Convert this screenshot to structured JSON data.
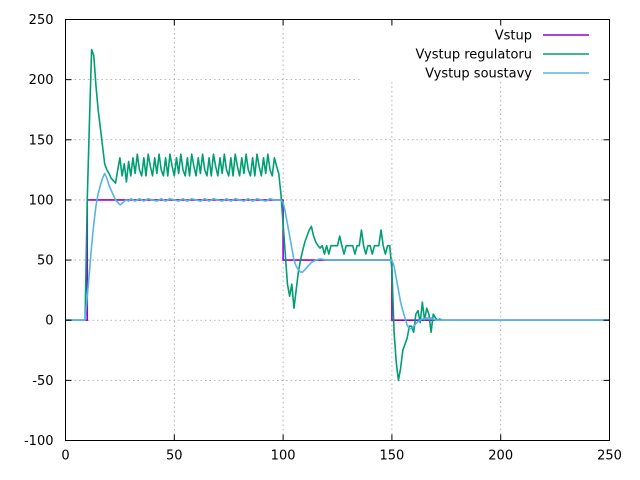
{
  "chart_data": {
    "type": "line",
    "title": "",
    "xlabel": "",
    "ylabel": "",
    "xlim": [
      0,
      250
    ],
    "ylim": [
      -100,
      250
    ],
    "x_ticks": [
      0,
      50,
      100,
      150,
      200,
      250
    ],
    "y_ticks": [
      -100,
      -50,
      0,
      50,
      100,
      150,
      200,
      250
    ],
    "grid": true,
    "legend_position": "top-right",
    "series": [
      {
        "name": "Vstup",
        "color": "#9400d3",
        "points": [
          [
            0,
            0
          ],
          [
            10,
            0
          ],
          [
            10,
            100
          ],
          [
            100,
            100
          ],
          [
            100,
            50
          ],
          [
            150,
            50
          ],
          [
            150,
            0
          ],
          [
            250,
            0
          ]
        ]
      },
      {
        "name": "Vystup regulatoru",
        "color": "#009e73",
        "points": [
          [
            0,
            0
          ],
          [
            9,
            0
          ],
          [
            10,
            100
          ],
          [
            11,
            165
          ],
          [
            12,
            225
          ],
          [
            13,
            220
          ],
          [
            14,
            195
          ],
          [
            15,
            175
          ],
          [
            16,
            160
          ],
          [
            17,
            145
          ],
          [
            18,
            130
          ],
          [
            19,
            125
          ],
          [
            20,
            122
          ],
          [
            21,
            118
          ],
          [
            22,
            116
          ],
          [
            23,
            114
          ],
          [
            24,
            125
          ],
          [
            25,
            135
          ],
          [
            26,
            120
          ],
          [
            27,
            130
          ],
          [
            28,
            115
          ],
          [
            29,
            132
          ],
          [
            30,
            120
          ],
          [
            31,
            135
          ],
          [
            32,
            122
          ],
          [
            33,
            138
          ],
          [
            34,
            125
          ],
          [
            35,
            120
          ],
          [
            36,
            135
          ],
          [
            37,
            120
          ],
          [
            38,
            138
          ],
          [
            39,
            128
          ],
          [
            40,
            120
          ],
          [
            41,
            135
          ],
          [
            42,
            122
          ],
          [
            43,
            138
          ],
          [
            44,
            125
          ],
          [
            45,
            120
          ],
          [
            46,
            135
          ],
          [
            47,
            120
          ],
          [
            48,
            138
          ],
          [
            49,
            128
          ],
          [
            50,
            120
          ],
          [
            51,
            135
          ],
          [
            52,
            122
          ],
          [
            53,
            138
          ],
          [
            54,
            125
          ],
          [
            55,
            120
          ],
          [
            56,
            135
          ],
          [
            57,
            120
          ],
          [
            58,
            138
          ],
          [
            59,
            128
          ],
          [
            60,
            120
          ],
          [
            61,
            135
          ],
          [
            62,
            122
          ],
          [
            63,
            138
          ],
          [
            64,
            125
          ],
          [
            65,
            120
          ],
          [
            66,
            135
          ],
          [
            67,
            120
          ],
          [
            68,
            138
          ],
          [
            69,
            128
          ],
          [
            70,
            120
          ],
          [
            71,
            135
          ],
          [
            72,
            122
          ],
          [
            73,
            138
          ],
          [
            74,
            125
          ],
          [
            75,
            120
          ],
          [
            76,
            135
          ],
          [
            77,
            120
          ],
          [
            78,
            138
          ],
          [
            79,
            128
          ],
          [
            80,
            120
          ],
          [
            81,
            135
          ],
          [
            82,
            122
          ],
          [
            83,
            138
          ],
          [
            84,
            125
          ],
          [
            85,
            120
          ],
          [
            86,
            135
          ],
          [
            87,
            120
          ],
          [
            88,
            138
          ],
          [
            89,
            128
          ],
          [
            90,
            120
          ],
          [
            91,
            135
          ],
          [
            92,
            122
          ],
          [
            93,
            138
          ],
          [
            94,
            125
          ],
          [
            95,
            120
          ],
          [
            96,
            135
          ],
          [
            97,
            128
          ],
          [
            98,
            122
          ],
          [
            99,
            105
          ],
          [
            100,
            80
          ],
          [
            101,
            55
          ],
          [
            102,
            30
          ],
          [
            103,
            20
          ],
          [
            104,
            30
          ],
          [
            105,
            10
          ],
          [
            106,
            25
          ],
          [
            107,
            40
          ],
          [
            108,
            50
          ],
          [
            109,
            58
          ],
          [
            110,
            65
          ],
          [
            111,
            70
          ],
          [
            112,
            75
          ],
          [
            113,
            78
          ],
          [
            114,
            70
          ],
          [
            115,
            65
          ],
          [
            116,
            62
          ],
          [
            117,
            60
          ],
          [
            118,
            62
          ],
          [
            119,
            55
          ],
          [
            120,
            62
          ],
          [
            121,
            55
          ],
          [
            122,
            62
          ],
          [
            123,
            62
          ],
          [
            124,
            62
          ],
          [
            125,
            62
          ],
          [
            126,
            70
          ],
          [
            127,
            62
          ],
          [
            128,
            55
          ],
          [
            129,
            62
          ],
          [
            130,
            62
          ],
          [
            131,
            62
          ],
          [
            132,
            62
          ],
          [
            133,
            55
          ],
          [
            134,
            62
          ],
          [
            135,
            62
          ],
          [
            136,
            75
          ],
          [
            137,
            62
          ],
          [
            138,
            55
          ],
          [
            139,
            62
          ],
          [
            140,
            62
          ],
          [
            141,
            55
          ],
          [
            142,
            62
          ],
          [
            143,
            62
          ],
          [
            144,
            62
          ],
          [
            145,
            75
          ],
          [
            146,
            62
          ],
          [
            147,
            55
          ],
          [
            148,
            62
          ],
          [
            149,
            62
          ],
          [
            150,
            42
          ],
          [
            151,
            -10
          ],
          [
            152,
            -35
          ],
          [
            153,
            -50
          ],
          [
            154,
            -40
          ],
          [
            155,
            -25
          ],
          [
            156,
            -20
          ],
          [
            157,
            -15
          ],
          [
            158,
            -5
          ],
          [
            159,
            -5
          ],
          [
            160,
            -10
          ],
          [
            161,
            5
          ],
          [
            162,
            8
          ],
          [
            163,
            -2
          ],
          [
            164,
            15
          ],
          [
            165,
            0
          ],
          [
            166,
            10
          ],
          [
            167,
            5
          ],
          [
            168,
            -10
          ],
          [
            169,
            5
          ],
          [
            170,
            2
          ],
          [
            171,
            0
          ],
          [
            172,
            1
          ],
          [
            173,
            0
          ],
          [
            250,
            0
          ]
        ]
      },
      {
        "name": "Vystup soustavy",
        "color": "#56b4e9",
        "points": [
          [
            0,
            0
          ],
          [
            9,
            0
          ],
          [
            10,
            20
          ],
          [
            11,
            40
          ],
          [
            12,
            62
          ],
          [
            13,
            80
          ],
          [
            14,
            95
          ],
          [
            15,
            105
          ],
          [
            16,
            112
          ],
          [
            17,
            118
          ],
          [
            18,
            122
          ],
          [
            19,
            118
          ],
          [
            20,
            112
          ],
          [
            21,
            108
          ],
          [
            22,
            104
          ],
          [
            23,
            100
          ],
          [
            24,
            98
          ],
          [
            25,
            96
          ],
          [
            26,
            97
          ],
          [
            27,
            99
          ],
          [
            28,
            100
          ],
          [
            29,
            99
          ],
          [
            30,
            101
          ],
          [
            32,
            99
          ],
          [
            34,
            101
          ],
          [
            36,
            99
          ],
          [
            38,
            101
          ],
          [
            40,
            100
          ],
          [
            42,
            99
          ],
          [
            44,
            101
          ],
          [
            46,
            99
          ],
          [
            48,
            101
          ],
          [
            50,
            100
          ],
          [
            52,
            99
          ],
          [
            54,
            101
          ],
          [
            56,
            99
          ],
          [
            58,
            101
          ],
          [
            60,
            100
          ],
          [
            62,
            99
          ],
          [
            64,
            101
          ],
          [
            66,
            99
          ],
          [
            68,
            101
          ],
          [
            70,
            100
          ],
          [
            72,
            99
          ],
          [
            74,
            101
          ],
          [
            76,
            99
          ],
          [
            78,
            101
          ],
          [
            80,
            100
          ],
          [
            82,
            99
          ],
          [
            84,
            101
          ],
          [
            86,
            99
          ],
          [
            88,
            101
          ],
          [
            90,
            100
          ],
          [
            92,
            99
          ],
          [
            94,
            101
          ],
          [
            96,
            100
          ],
          [
            98,
            100
          ],
          [
            99,
            100
          ],
          [
            100,
            98
          ],
          [
            101,
            90
          ],
          [
            102,
            80
          ],
          [
            103,
            70
          ],
          [
            104,
            60
          ],
          [
            105,
            50
          ],
          [
            106,
            45
          ],
          [
            107,
            42
          ],
          [
            108,
            40
          ],
          [
            109,
            40
          ],
          [
            110,
            42
          ],
          [
            111,
            44
          ],
          [
            112,
            46
          ],
          [
            113,
            48
          ],
          [
            114,
            49
          ],
          [
            115,
            50
          ],
          [
            117,
            51
          ],
          [
            120,
            50
          ],
          [
            125,
            50
          ],
          [
            130,
            50
          ],
          [
            135,
            50
          ],
          [
            140,
            50
          ],
          [
            145,
            50
          ],
          [
            149,
            50
          ],
          [
            150,
            50
          ],
          [
            151,
            45
          ],
          [
            152,
            35
          ],
          [
            153,
            25
          ],
          [
            154,
            15
          ],
          [
            155,
            8
          ],
          [
            156,
            2
          ],
          [
            157,
            -4
          ],
          [
            158,
            -7
          ],
          [
            159,
            -7
          ],
          [
            160,
            -5
          ],
          [
            161,
            -3
          ],
          [
            162,
            -1
          ],
          [
            163,
            0
          ],
          [
            164,
            1
          ],
          [
            165,
            1
          ],
          [
            166,
            2
          ],
          [
            167,
            1
          ],
          [
            168,
            2
          ],
          [
            169,
            1
          ],
          [
            170,
            0
          ],
          [
            171,
            0
          ],
          [
            175,
            0
          ],
          [
            250,
            0
          ]
        ]
      }
    ]
  }
}
